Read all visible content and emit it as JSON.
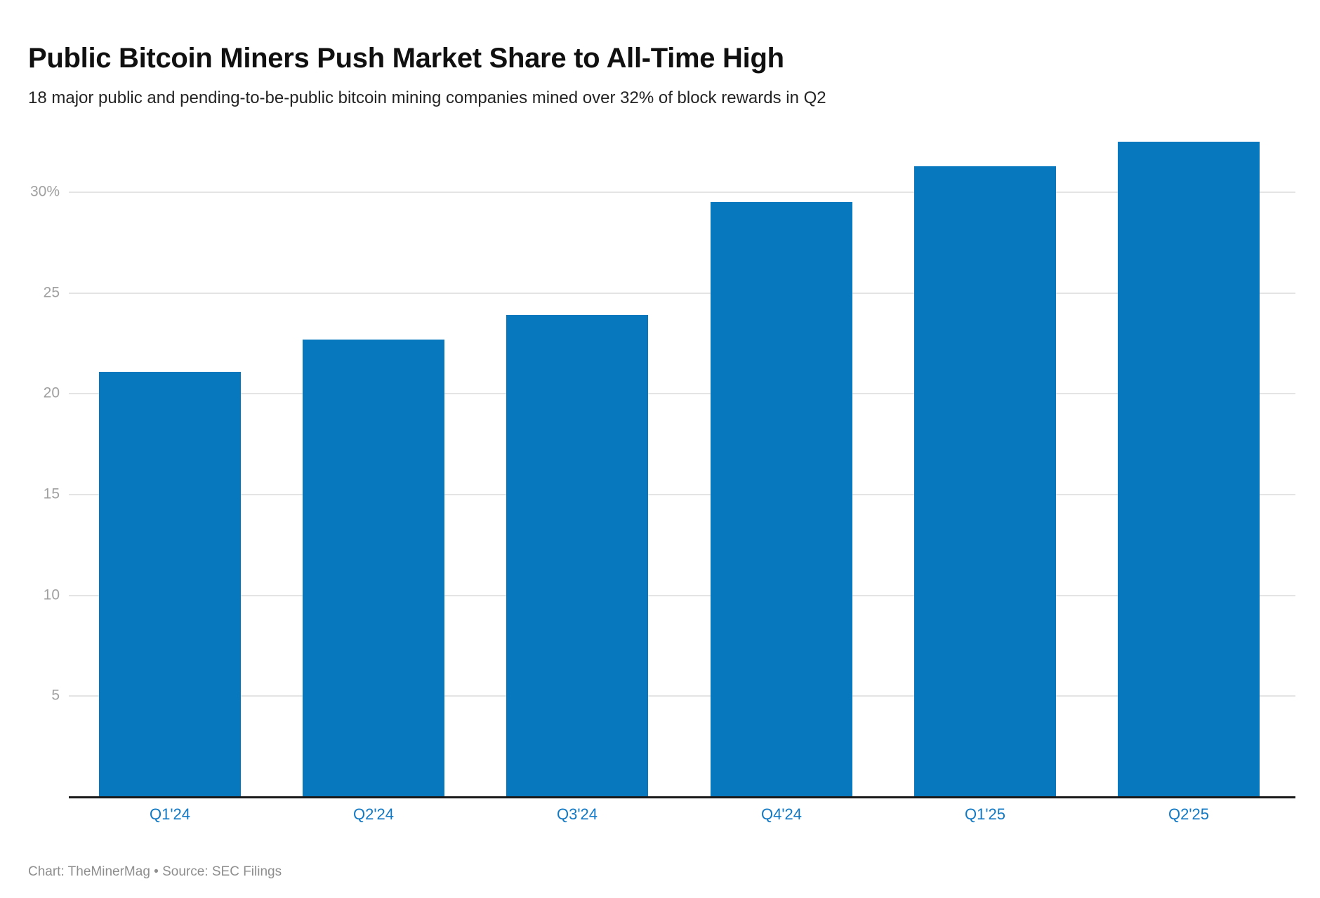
{
  "header": {
    "title": "Public Bitcoin Miners Push Market Share to All-Time High",
    "subtitle": "18 major public and pending-to-be-public bitcoin mining companies mined over 32% of block rewards in Q2"
  },
  "footer": {
    "text": "Chart: TheMinerMag • Source: SEC Filings"
  },
  "chart_data": {
    "type": "bar",
    "title": "Public Bitcoin Miners Push Market Share to All-Time High",
    "subtitle": "18 major public and pending-to-be-public bitcoin mining companies mined over 32% of block rewards in Q2",
    "categories": [
      "Q1'24",
      "Q2'24",
      "Q3'24",
      "Q4'24",
      "Q1'25",
      "Q2'25"
    ],
    "values": [
      21.1,
      22.7,
      23.9,
      29.5,
      31.3,
      32.5
    ],
    "unit": "%",
    "xlabel": "",
    "ylabel": "",
    "ylim": [
      0,
      33.5
    ],
    "y_ticks": [
      5,
      10,
      15,
      20,
      25,
      30
    ],
    "y_tick_labels": [
      "5",
      "10",
      "15",
      "20",
      "25",
      "30%"
    ],
    "grid": "horizontal-only",
    "legend": "none",
    "colors": {
      "bar": "#0778bd",
      "x_tick_label": "#1279c4",
      "y_tick_label": "#a0a0a0",
      "gridline": "#e4e4e4",
      "axis_line": "#191919"
    }
  }
}
